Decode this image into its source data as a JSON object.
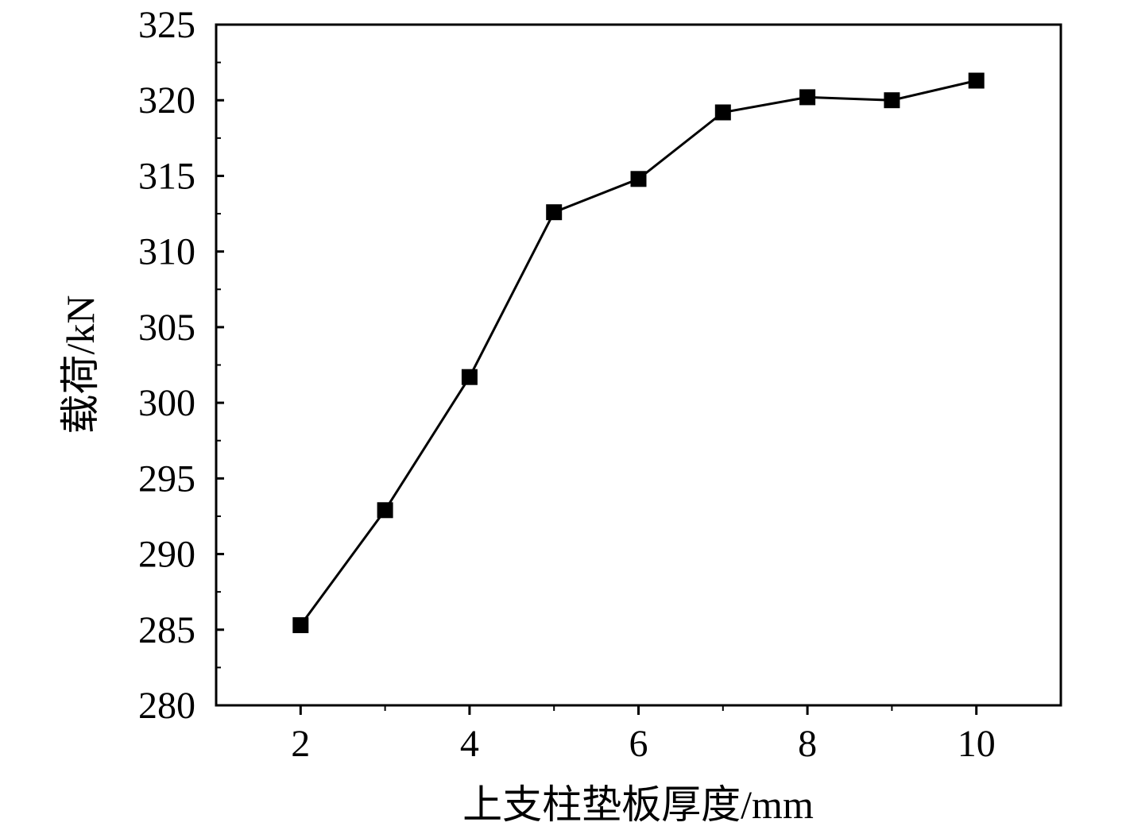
{
  "chart_data": {
    "type": "line",
    "title": "",
    "xlabel": "上支柱垫板厚度/mm",
    "ylabel": "载荷/kN",
    "xlim": [
      1,
      11
    ],
    "ylim": [
      280,
      325
    ],
    "x_ticks": [
      2,
      4,
      6,
      8,
      10
    ],
    "x_tick_labels": [
      "2",
      "4",
      "6",
      "8",
      "10"
    ],
    "x_minor_ticks": [
      3,
      5,
      7,
      9
    ],
    "y_ticks": [
      280,
      285,
      290,
      295,
      300,
      305,
      310,
      315,
      320,
      325
    ],
    "y_tick_labels": [
      "280",
      "285",
      "290",
      "295",
      "300",
      "305",
      "310",
      "315",
      "320",
      "325"
    ],
    "grid": false,
    "legend": "none",
    "marker": "square",
    "color": "#000000",
    "series": [
      {
        "x": [
          2,
          3,
          4,
          5,
          6,
          7,
          8,
          9,
          10
        ],
        "y": [
          285.3,
          292.9,
          301.7,
          312.6,
          314.8,
          319.2,
          320.2,
          320.0,
          321.3
        ]
      }
    ]
  }
}
